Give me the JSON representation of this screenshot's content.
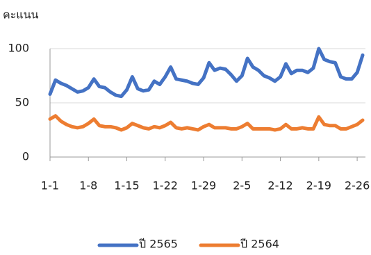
{
  "chart_data": {
    "type": "line",
    "y_label": "คะแนน",
    "categories": [
      "1-1",
      null,
      null,
      null,
      null,
      null,
      null,
      "1-8",
      null,
      null,
      null,
      null,
      null,
      null,
      "1-15",
      null,
      null,
      null,
      null,
      null,
      null,
      "1-22",
      null,
      null,
      null,
      null,
      null,
      null,
      "1-29",
      null,
      null,
      null,
      null,
      null,
      null,
      "2-5",
      null,
      null,
      null,
      null,
      null,
      null,
      "2-12",
      null,
      null,
      null,
      null,
      null,
      null,
      "2-19",
      null,
      null,
      null,
      null,
      null,
      null,
      "2-26",
      null
    ],
    "series": [
      {
        "name": "ปี 2565",
        "color": "#4472c4",
        "values": [
          58,
          71,
          68,
          66,
          63,
          60,
          61,
          64,
          72,
          65,
          64,
          60,
          57,
          56,
          62,
          74,
          63,
          61,
          62,
          70,
          67,
          74,
          83,
          72,
          71,
          70,
          68,
          67,
          73,
          87,
          80,
          82,
          81,
          76,
          70,
          75,
          91,
          83,
          80,
          75,
          73,
          70,
          74,
          86,
          77,
          80,
          80,
          78,
          82,
          100,
          90,
          88,
          87,
          74,
          72,
          72,
          78,
          94
        ]
      },
      {
        "name": "ปี 2564",
        "color": "#ed7d31",
        "values": [
          35,
          38,
          33,
          30,
          28,
          27,
          28,
          31,
          35,
          29,
          28,
          28,
          27,
          25,
          27,
          31,
          29,
          27,
          26,
          28,
          27,
          29,
          32,
          27,
          26,
          27,
          26,
          25,
          28,
          30,
          27,
          27,
          27,
          26,
          26,
          28,
          31,
          26,
          26,
          26,
          26,
          25,
          26,
          30,
          26,
          26,
          27,
          26,
          26,
          37,
          30,
          29,
          29,
          26,
          26,
          28,
          30,
          34
        ]
      }
    ],
    "ylim": [
      0,
      100
    ],
    "yticks": [
      0,
      50,
      100
    ],
    "grid": true
  }
}
